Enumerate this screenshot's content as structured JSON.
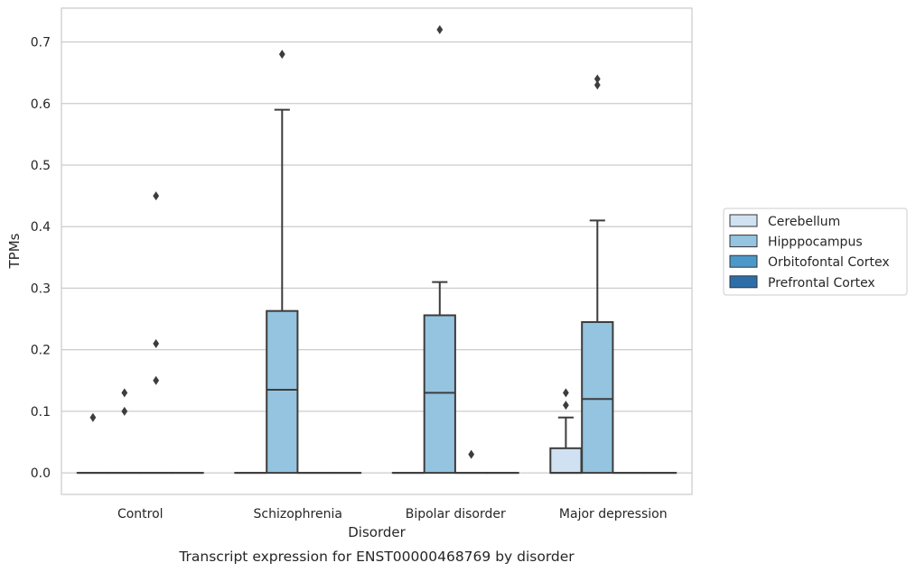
{
  "chart_data": {
    "type": "box",
    "title": "Transcript expression for ENST00000468769 by disorder",
    "xlabel": "Disorder",
    "ylabel": "TPMs",
    "ylim": [
      -0.035,
      0.755
    ],
    "yticks": [
      0.0,
      0.1,
      0.2,
      0.3,
      0.4,
      0.5,
      0.6,
      0.7
    ],
    "ytick_labels": [
      "0.0",
      "0.1",
      "0.2",
      "0.3",
      "0.4",
      "0.5",
      "0.6",
      "0.7"
    ],
    "grid": true,
    "legend_position": "right",
    "categories": [
      "Control",
      "Schizophrenia",
      "Bipolar disorder",
      "Major depression"
    ],
    "series": [
      {
        "name": "Cerebellum",
        "color": "#d0e1f2",
        "boxes": [
          {
            "category": "Control",
            "whislo": 0.0,
            "q1": 0.0,
            "med": 0.0,
            "q3": 0.0,
            "whishi": 0.0,
            "fliers": [
              0.09
            ]
          },
          {
            "category": "Schizophrenia",
            "whislo": 0.0,
            "q1": 0.0,
            "med": 0.0,
            "q3": 0.0,
            "whishi": 0.0,
            "fliers": []
          },
          {
            "category": "Bipolar disorder",
            "whislo": 0.0,
            "q1": 0.0,
            "med": 0.0,
            "q3": 0.0,
            "whishi": 0.0,
            "fliers": []
          },
          {
            "category": "Major depression",
            "whislo": 0.0,
            "q1": 0.0,
            "med": 0.0,
            "q3": 0.04,
            "whishi": 0.09,
            "fliers": [
              0.11,
              0.13
            ]
          }
        ]
      },
      {
        "name": "Hipppocampus",
        "color": "#94c4df",
        "boxes": [
          {
            "category": "Control",
            "whislo": 0.0,
            "q1": 0.0,
            "med": 0.0,
            "q3": 0.0,
            "whishi": 0.0,
            "fliers": [
              0.1,
              0.13
            ]
          },
          {
            "category": "Schizophrenia",
            "whislo": 0.0,
            "q1": 0.0,
            "med": 0.135,
            "q3": 0.263,
            "whishi": 0.59,
            "fliers": [
              0.68
            ]
          },
          {
            "category": "Bipolar disorder",
            "whislo": 0.0,
            "q1": 0.0,
            "med": 0.13,
            "q3": 0.256,
            "whishi": 0.31,
            "fliers": [
              0.72
            ]
          },
          {
            "category": "Major depression",
            "whislo": 0.0,
            "q1": 0.0,
            "med": 0.12,
            "q3": 0.245,
            "whishi": 0.41,
            "fliers": [
              0.63,
              0.64
            ]
          }
        ]
      },
      {
        "name": "Orbitofontal Cortex",
        "color": "#4a98c9",
        "boxes": [
          {
            "category": "Control",
            "whislo": 0.0,
            "q1": 0.0,
            "med": 0.0,
            "q3": 0.0,
            "whishi": 0.0,
            "fliers": [
              0.15,
              0.21,
              0.45
            ]
          },
          {
            "category": "Schizophrenia",
            "whislo": 0.0,
            "q1": 0.0,
            "med": 0.0,
            "q3": 0.0,
            "whishi": 0.0,
            "fliers": []
          },
          {
            "category": "Bipolar disorder",
            "whislo": 0.0,
            "q1": 0.0,
            "med": 0.0,
            "q3": 0.0,
            "whishi": 0.0,
            "fliers": [
              0.03
            ]
          },
          {
            "category": "Major depression",
            "whislo": 0.0,
            "q1": 0.0,
            "med": 0.0,
            "q3": 0.0,
            "whishi": 0.0,
            "fliers": []
          }
        ]
      },
      {
        "name": "Prefrontal Cortex",
        "color": "#2e6ea8",
        "boxes": [
          {
            "category": "Control",
            "whislo": 0.0,
            "q1": 0.0,
            "med": 0.0,
            "q3": 0.0,
            "whishi": 0.0,
            "fliers": []
          },
          {
            "category": "Schizophrenia",
            "whislo": 0.0,
            "q1": 0.0,
            "med": 0.0,
            "q3": 0.0,
            "whishi": 0.0,
            "fliers": []
          },
          {
            "category": "Bipolar disorder",
            "whislo": 0.0,
            "q1": 0.0,
            "med": 0.0,
            "q3": 0.0,
            "whishi": 0.0,
            "fliers": []
          },
          {
            "category": "Major depression",
            "whislo": 0.0,
            "q1": 0.0,
            "med": 0.0,
            "q3": 0.0,
            "whishi": 0.0,
            "fliers": []
          }
        ]
      }
    ]
  }
}
